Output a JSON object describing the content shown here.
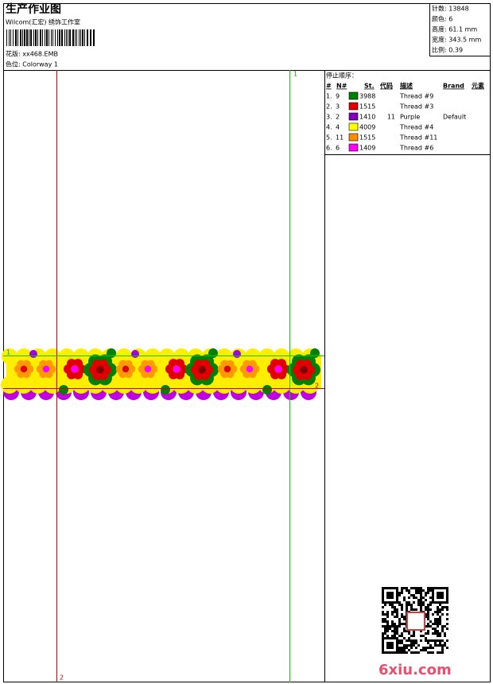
{
  "header": {
    "title": "生产作业图",
    "studio": "Wilcom(汇宏) 绣饰工作室",
    "design": "花版: xx468.EMB",
    "colorway": "色位: Colorway 1"
  },
  "info": [
    "针数: 13848",
    "颜色: 6",
    "高度: 61.1 mm",
    "宽度: 343.5 mm",
    "比例: 0.39"
  ],
  "guides": {
    "v1": "1",
    "v2": "2",
    "h1": "1",
    "h2": "2"
  },
  "stops": {
    "title": "停止顺序：",
    "columns": [
      "#",
      "N#",
      "St.",
      "代码",
      "描述",
      "Brand",
      "元素"
    ],
    "rows": [
      {
        "no": "1.",
        "n": "9",
        "color": "#008000",
        "st": "3988",
        "desc": "Thread #9"
      },
      {
        "no": "2.",
        "n": "3",
        "color": "#e00000",
        "st": "1515",
        "desc": "Thread #3"
      },
      {
        "no": "3.",
        "n": "2",
        "color": "#8000c0",
        "st": "1410",
        "code": "11",
        "desc": "Purple",
        "brand": "Default"
      },
      {
        "no": "4.",
        "n": "4",
        "color": "#ffff00",
        "st": "4009",
        "desc": "Thread #4"
      },
      {
        "no": "5.",
        "n": "11",
        "color": "#ff8c00",
        "st": "1515",
        "desc": "Thread #11"
      },
      {
        "no": "6.",
        "n": "6",
        "color": "#ff00ff",
        "st": "1409",
        "desc": "Thread #6"
      }
    ]
  },
  "watermark": "6xiu.com"
}
